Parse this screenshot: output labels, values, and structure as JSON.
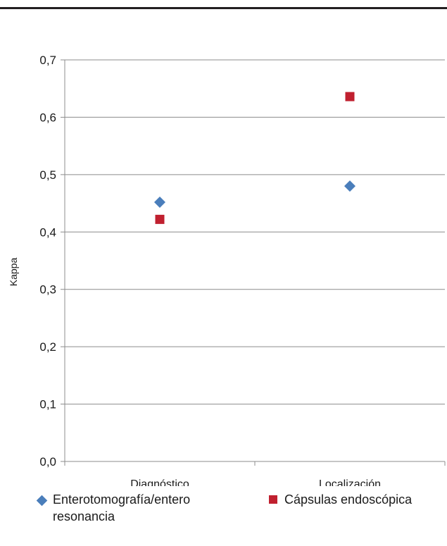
{
  "chart_data": {
    "type": "scatter",
    "title": "",
    "ylabel": "Kappa",
    "xlabel": "",
    "ylim": [
      0,
      0.7
    ],
    "yticks": [
      "0,0",
      "0,1",
      "0,2",
      "0,3",
      "0,4",
      "0,5",
      "0,6",
      "0,7"
    ],
    "categories": [
      "Diagnóstico",
      "Localización"
    ],
    "grid": true,
    "legend_position": "bottom",
    "series": [
      {
        "name": "Enterotomografía/entero resonancia",
        "marker": "diamond",
        "color": "#4a7ebb",
        "values": [
          0.452,
          0.48
        ]
      },
      {
        "name": "Cápsulas endoscópica",
        "marker": "square",
        "color": "#c0202f",
        "values": [
          0.422,
          0.636
        ]
      }
    ]
  }
}
